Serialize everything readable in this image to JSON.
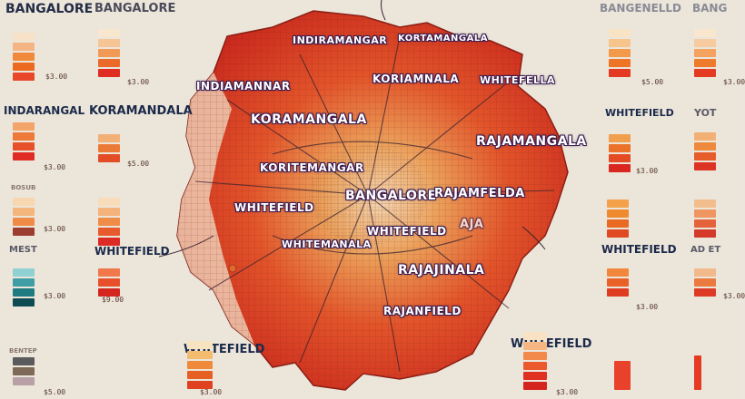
{
  "map_labels": {
    "center": "BANGALORE",
    "indiramangar": "INDIRAMANGAR",
    "kortamangala_top": "KORTAMANGALA",
    "indiamannar": "INDIAMANNAR",
    "koriamnala": "KORIAMNALA",
    "whitefella": "WHITEFELLA",
    "koramangala": "KORAMANGALA",
    "rajamangala": "RAJAMANGALA",
    "koritemangar": "KORITEMANGAR",
    "rajamfelda": "RAJAMFELDA",
    "whitefield_left": "WHITEFIELD",
    "whitemanala": "WHITEMANALA",
    "whitefield_mid": "WHITEFIELD",
    "rajajinala": "RAJAJINALA",
    "rajanfield": "RAJANFIELD",
    "aja": "AJA"
  },
  "side_labels": {
    "top_left": "BANGALORE",
    "top_left_faint": "BANGALORE",
    "top_right": "BANGENELLD",
    "top_right_far": "BANG",
    "indarangal": "INDARANGAL",
    "koramandala": "KORAMANDALA",
    "whitefield_right": "WHITEFIELD",
    "yo_right": "YOT",
    "whitefield_lower_left": "WHITEFIELD",
    "whitefield_lower_right": "WHITEFIELD",
    "ad_right": "AD ET",
    "whitefield_bottom_left": "WHITEFIELD",
    "whitefield_bottom_right": "WHITEFIELD",
    "mid_left_small": "BOSUB",
    "lower_left_small": "MEST",
    "bottom_left_small": "BENTEP"
  },
  "legends": {
    "price_a": "$3.00",
    "price_b": "$3.00",
    "price_c": "$5.00",
    "price_d": "$3.00",
    "price_e": "$3.00",
    "price_f": "$5.00",
    "price_g": "$3.00",
    "price_h": "$3.00",
    "price_i": "$3.00",
    "price_j": "$9.00",
    "price_k": "$3.00",
    "price_l": "$3.00",
    "price_m": "$5.00",
    "price_n": "$3.00",
    "price_o": "$3.00"
  },
  "colors": {
    "map_red": "#d7331f",
    "map_orange": "#ea7a22",
    "map_dark_red": "#a9211a",
    "teal": "#1c6b72",
    "background": "#ebe5da"
  }
}
